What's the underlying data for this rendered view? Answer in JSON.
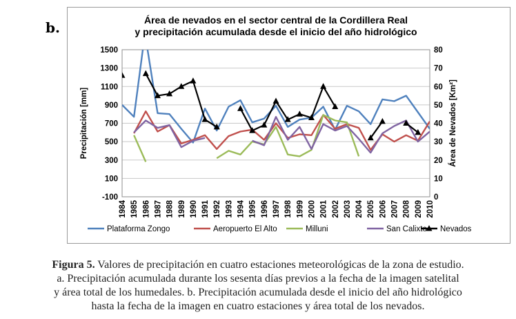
{
  "panel_label": "b.",
  "caption": {
    "label": "Figura 5.",
    "line1": "Valores de precipitación en cuatro estaciones meteorológicas de la zona de estudio.",
    "line2": "a. Precipitación acumulada durante los sesenta días previos a la fecha de la imagen satelital",
    "line3": "y área total de los humedales. b. Precipitación acumulada desde el inicio del año hidrológico",
    "line4": "hasta la fecha de la imagen en cuatro estaciones y área total de los nevados."
  },
  "chart_data": {
    "type": "line",
    "title": [
      "Área de nevados en el sector central de la Cordillera Real",
      "y precipitación acumulada desde el inicio del año hidrológico"
    ],
    "ylabel": "Precipitación [mm]",
    "y2label": "Área de Nevados [Km²]",
    "xlabel": "",
    "ylim": [
      -100,
      1500
    ],
    "y2lim": [
      0,
      80
    ],
    "yticks": [
      -100,
      100,
      300,
      500,
      700,
      900,
      1100,
      1300,
      1500
    ],
    "y2ticks": [
      0,
      10,
      20,
      30,
      40,
      50,
      60,
      70,
      80
    ],
    "x_range": [
      1984,
      2010
    ],
    "x_ticks": [
      "1984",
      "1985",
      "1986",
      "1987",
      "1988",
      "1989",
      "1990",
      "1991",
      "1992",
      "1993",
      "1994",
      "1995",
      "1996",
      "1997",
      "1998",
      "1999",
      "2000",
      "2001",
      "2002",
      "2003",
      "2004",
      "2005",
      "2006",
      "2007",
      "2008",
      "2009",
      "2010"
    ],
    "grid": true,
    "legend_position": "bottom",
    "series": [
      {
        "name": "Plataforma Zongo",
        "color": "#4f81bd",
        "axis": "left",
        "marker": "none",
        "segments": [
          [
            [
              1984,
              900
            ],
            [
              1985,
              770
            ],
            [
              1985.75,
              1500
            ]
          ],
          [
            [
              1986.15,
              1500
            ],
            [
              1987,
              810
            ],
            [
              1988,
              800
            ],
            [
              1989,
              640
            ],
            [
              1990,
              490
            ],
            [
              1991,
              860
            ],
            [
              1992,
              620
            ],
            [
              1993,
              880
            ],
            [
              1994,
              950
            ],
            [
              1995,
              710
            ],
            [
              1996,
              750
            ],
            [
              1997,
              890
            ],
            [
              1998,
              660
            ],
            [
              1999,
              740
            ],
            [
              2000,
              760
            ],
            [
              2001,
              880
            ],
            [
              2002,
              630
            ],
            [
              2003,
              890
            ],
            [
              2004,
              830
            ],
            [
              2005,
              690
            ],
            [
              2006,
              960
            ],
            [
              2007,
              940
            ],
            [
              2008,
              1000
            ],
            [
              2009,
              820
            ],
            [
              2010,
              640
            ]
          ]
        ]
      },
      {
        "name": "Aeropuerto El Alto",
        "color": "#c0504d",
        "axis": "left",
        "marker": "none",
        "segments": [
          [
            [
              1985,
              590
            ],
            [
              1986,
              830
            ],
            [
              1987,
              610
            ],
            [
              1988,
              680
            ],
            [
              1989,
              480
            ],
            [
              1990,
              520
            ],
            [
              1991,
              570
            ],
            [
              1992,
              420
            ],
            [
              1993,
              560
            ],
            [
              1994,
              610
            ],
            [
              1995,
              630
            ],
            [
              1996,
              520
            ],
            [
              1997,
              700
            ],
            [
              1998,
              540
            ],
            [
              1999,
              580
            ],
            [
              2000,
              570
            ],
            [
              2001,
              790
            ],
            [
              2002,
              640
            ],
            [
              2003,
              690
            ],
            [
              2004,
              650
            ],
            [
              2005,
              410
            ],
            [
              2006,
              580
            ],
            [
              2007,
              500
            ],
            [
              2008,
              570
            ],
            [
              2009,
              510
            ],
            [
              2010,
              720
            ]
          ]
        ]
      },
      {
        "name": "Milluni",
        "color": "#9bbb59",
        "axis": "left",
        "marker": "none",
        "segments": [
          [
            [
              1985,
              570
            ],
            [
              1986,
              280
            ]
          ],
          [
            [
              1992,
              320
            ],
            [
              1993,
              400
            ],
            [
              1994,
              360
            ],
            [
              1995,
              500
            ],
            [
              1996,
              470
            ],
            [
              1997,
              660
            ],
            [
              1998,
              360
            ],
            [
              1999,
              340
            ],
            [
              2000,
              410
            ],
            [
              2001,
              790
            ],
            [
              2002,
              730
            ],
            [
              2003,
              710
            ],
            [
              2004,
              340
            ]
          ]
        ]
      },
      {
        "name": "San Calixto",
        "color": "#8064a2",
        "axis": "left",
        "marker": "none",
        "segments": [
          [
            [
              1985,
              600
            ],
            [
              1986,
              730
            ],
            [
              1987,
              650
            ],
            [
              1988,
              680
            ],
            [
              1989,
              440
            ],
            [
              1990,
              510
            ],
            [
              1991,
              540
            ]
          ],
          [
            [
              1995,
              510
            ],
            [
              1996,
              460
            ],
            [
              1997,
              770
            ],
            [
              1998,
              520
            ],
            [
              1999,
              660
            ],
            [
              2000,
              420
            ],
            [
              2001,
              690
            ],
            [
              2002,
              620
            ],
            [
              2003,
              670
            ],
            [
              2004,
              530
            ],
            [
              2005,
              380
            ],
            [
              2006,
              590
            ],
            [
              2007,
              670
            ],
            [
              2008,
              730
            ],
            [
              2009,
              500
            ],
            [
              2010,
              610
            ]
          ]
        ]
      },
      {
        "name": "Nevados",
        "color": "#000000",
        "axis": "right",
        "marker": "triangle",
        "segments": [
          [
            [
              1984,
              66
            ]
          ],
          [
            [
              1986,
              67
            ],
            [
              1987,
              55
            ],
            [
              1988,
              56
            ],
            [
              1989,
              60
            ],
            [
              1990,
              63
            ],
            [
              1991,
              42
            ],
            [
              1992,
              38
            ]
          ],
          [
            [
              1994,
              48
            ],
            [
              1995,
              36
            ],
            [
              1996,
              39
            ],
            [
              1997,
              52
            ],
            [
              1998,
              42
            ],
            [
              1999,
              45
            ],
            [
              2000,
              43
            ],
            [
              2001,
              60
            ],
            [
              2002,
              49
            ]
          ],
          [
            [
              2005,
              32
            ],
            [
              2006,
              41
            ]
          ],
          [
            [
              2008,
              40
            ],
            [
              2009,
              35
            ]
          ]
        ]
      }
    ]
  }
}
